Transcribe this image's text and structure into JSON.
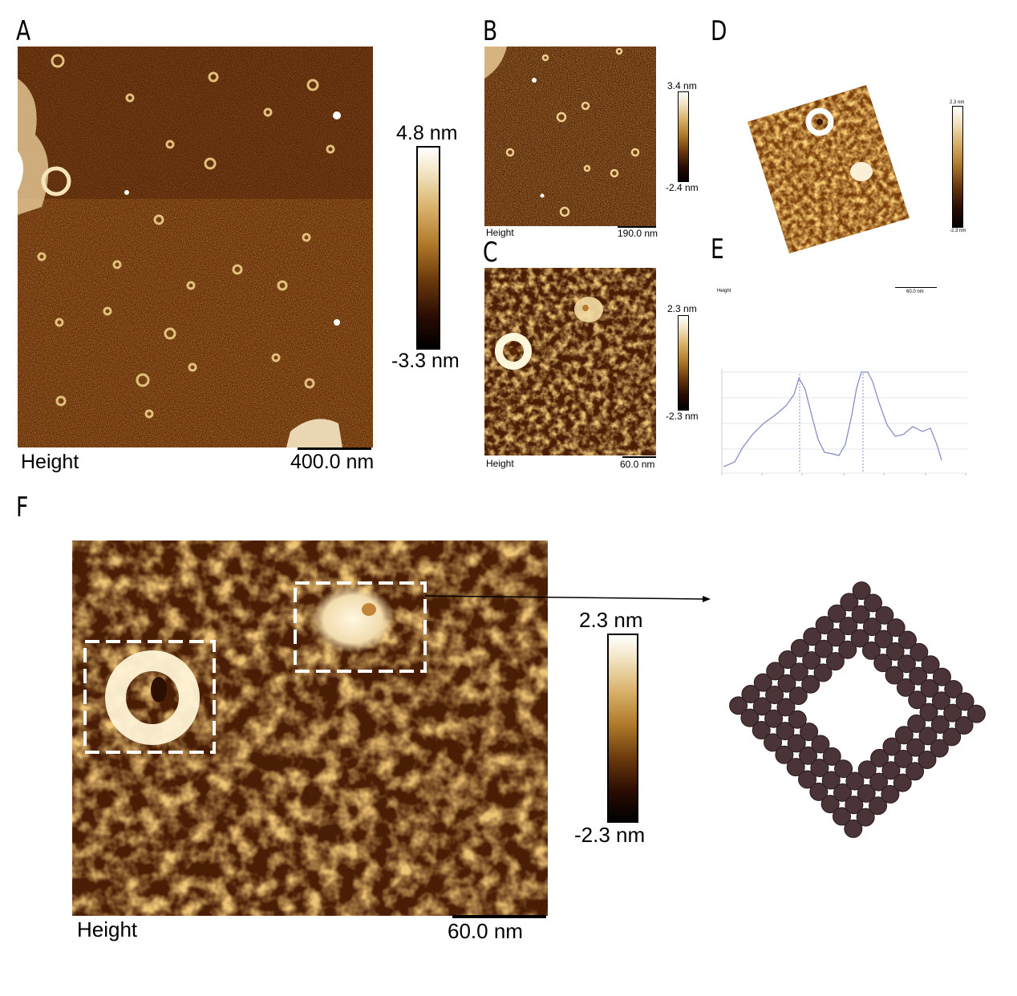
{
  "panels": {
    "A": {
      "letter": "A",
      "height_label": "Height",
      "scale_label": "400.0 nm",
      "colorbar": {
        "max": "4.8 nm",
        "min": "-3.3 nm"
      }
    },
    "B": {
      "letter": "B",
      "height_label": "Height",
      "scale_label": "190.0 nm",
      "colorbar": {
        "max": "3.4 nm",
        "min": "-2.4 nm"
      }
    },
    "C": {
      "letter": "C",
      "height_label": "Height",
      "scale_label": "60.0 nm",
      "colorbar": {
        "max": "2.3 nm",
        "min": "-2.3 nm"
      }
    },
    "D": {
      "letter": "D",
      "colorbar": {
        "max": "2.3 nm",
        "min": "-2.3 nm"
      }
    },
    "E": {
      "letter": "E",
      "height_label": "Height",
      "scale_label": "60.0 nm"
    },
    "F": {
      "letter": "F",
      "height_label": "Height",
      "scale_label": "60.0 nm",
      "colorbar": {
        "max": "2.3 nm",
        "min": "-2.3 nm"
      }
    }
  },
  "colors": {
    "afm_dark": "#3a1503",
    "afm_mid": "#8a4b12",
    "afm_light": "#f2dcae",
    "model_tile": "#4a3438"
  }
}
